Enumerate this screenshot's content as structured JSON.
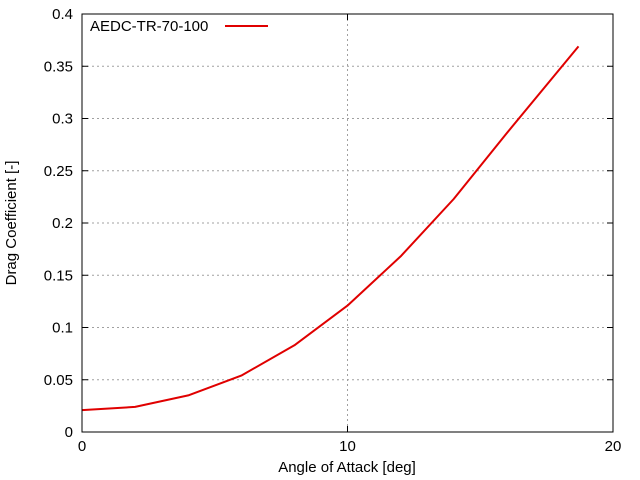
{
  "chart_data": {
    "type": "line",
    "title": "",
    "xlabel": "Angle of Attack [deg]",
    "ylabel": "Drag Coefficient [-]",
    "xlim": [
      0,
      20
    ],
    "ylim": [
      0,
      0.4
    ],
    "x_ticks": [
      0,
      10,
      20
    ],
    "x_tick_labels": [
      "0",
      "10",
      "20"
    ],
    "y_ticks": [
      0,
      0.05,
      0.1,
      0.15,
      0.2,
      0.25,
      0.3,
      0.35,
      0.4
    ],
    "y_tick_labels": [
      "0",
      "0.05",
      "0.1",
      "0.15",
      "0.2",
      "0.25",
      "0.3",
      "0.35",
      "0.4"
    ],
    "grid": true,
    "legend_position": "top-left",
    "series": [
      {
        "name": "AEDC-TR-70-100",
        "color": "#e00000",
        "x": [
          0,
          2,
          4,
          6,
          8,
          10,
          12,
          14,
          16,
          18.7
        ],
        "y": [
          0.021,
          0.024,
          0.035,
          0.054,
          0.083,
          0.121,
          0.168,
          0.223,
          0.286,
          0.369
        ]
      }
    ]
  }
}
